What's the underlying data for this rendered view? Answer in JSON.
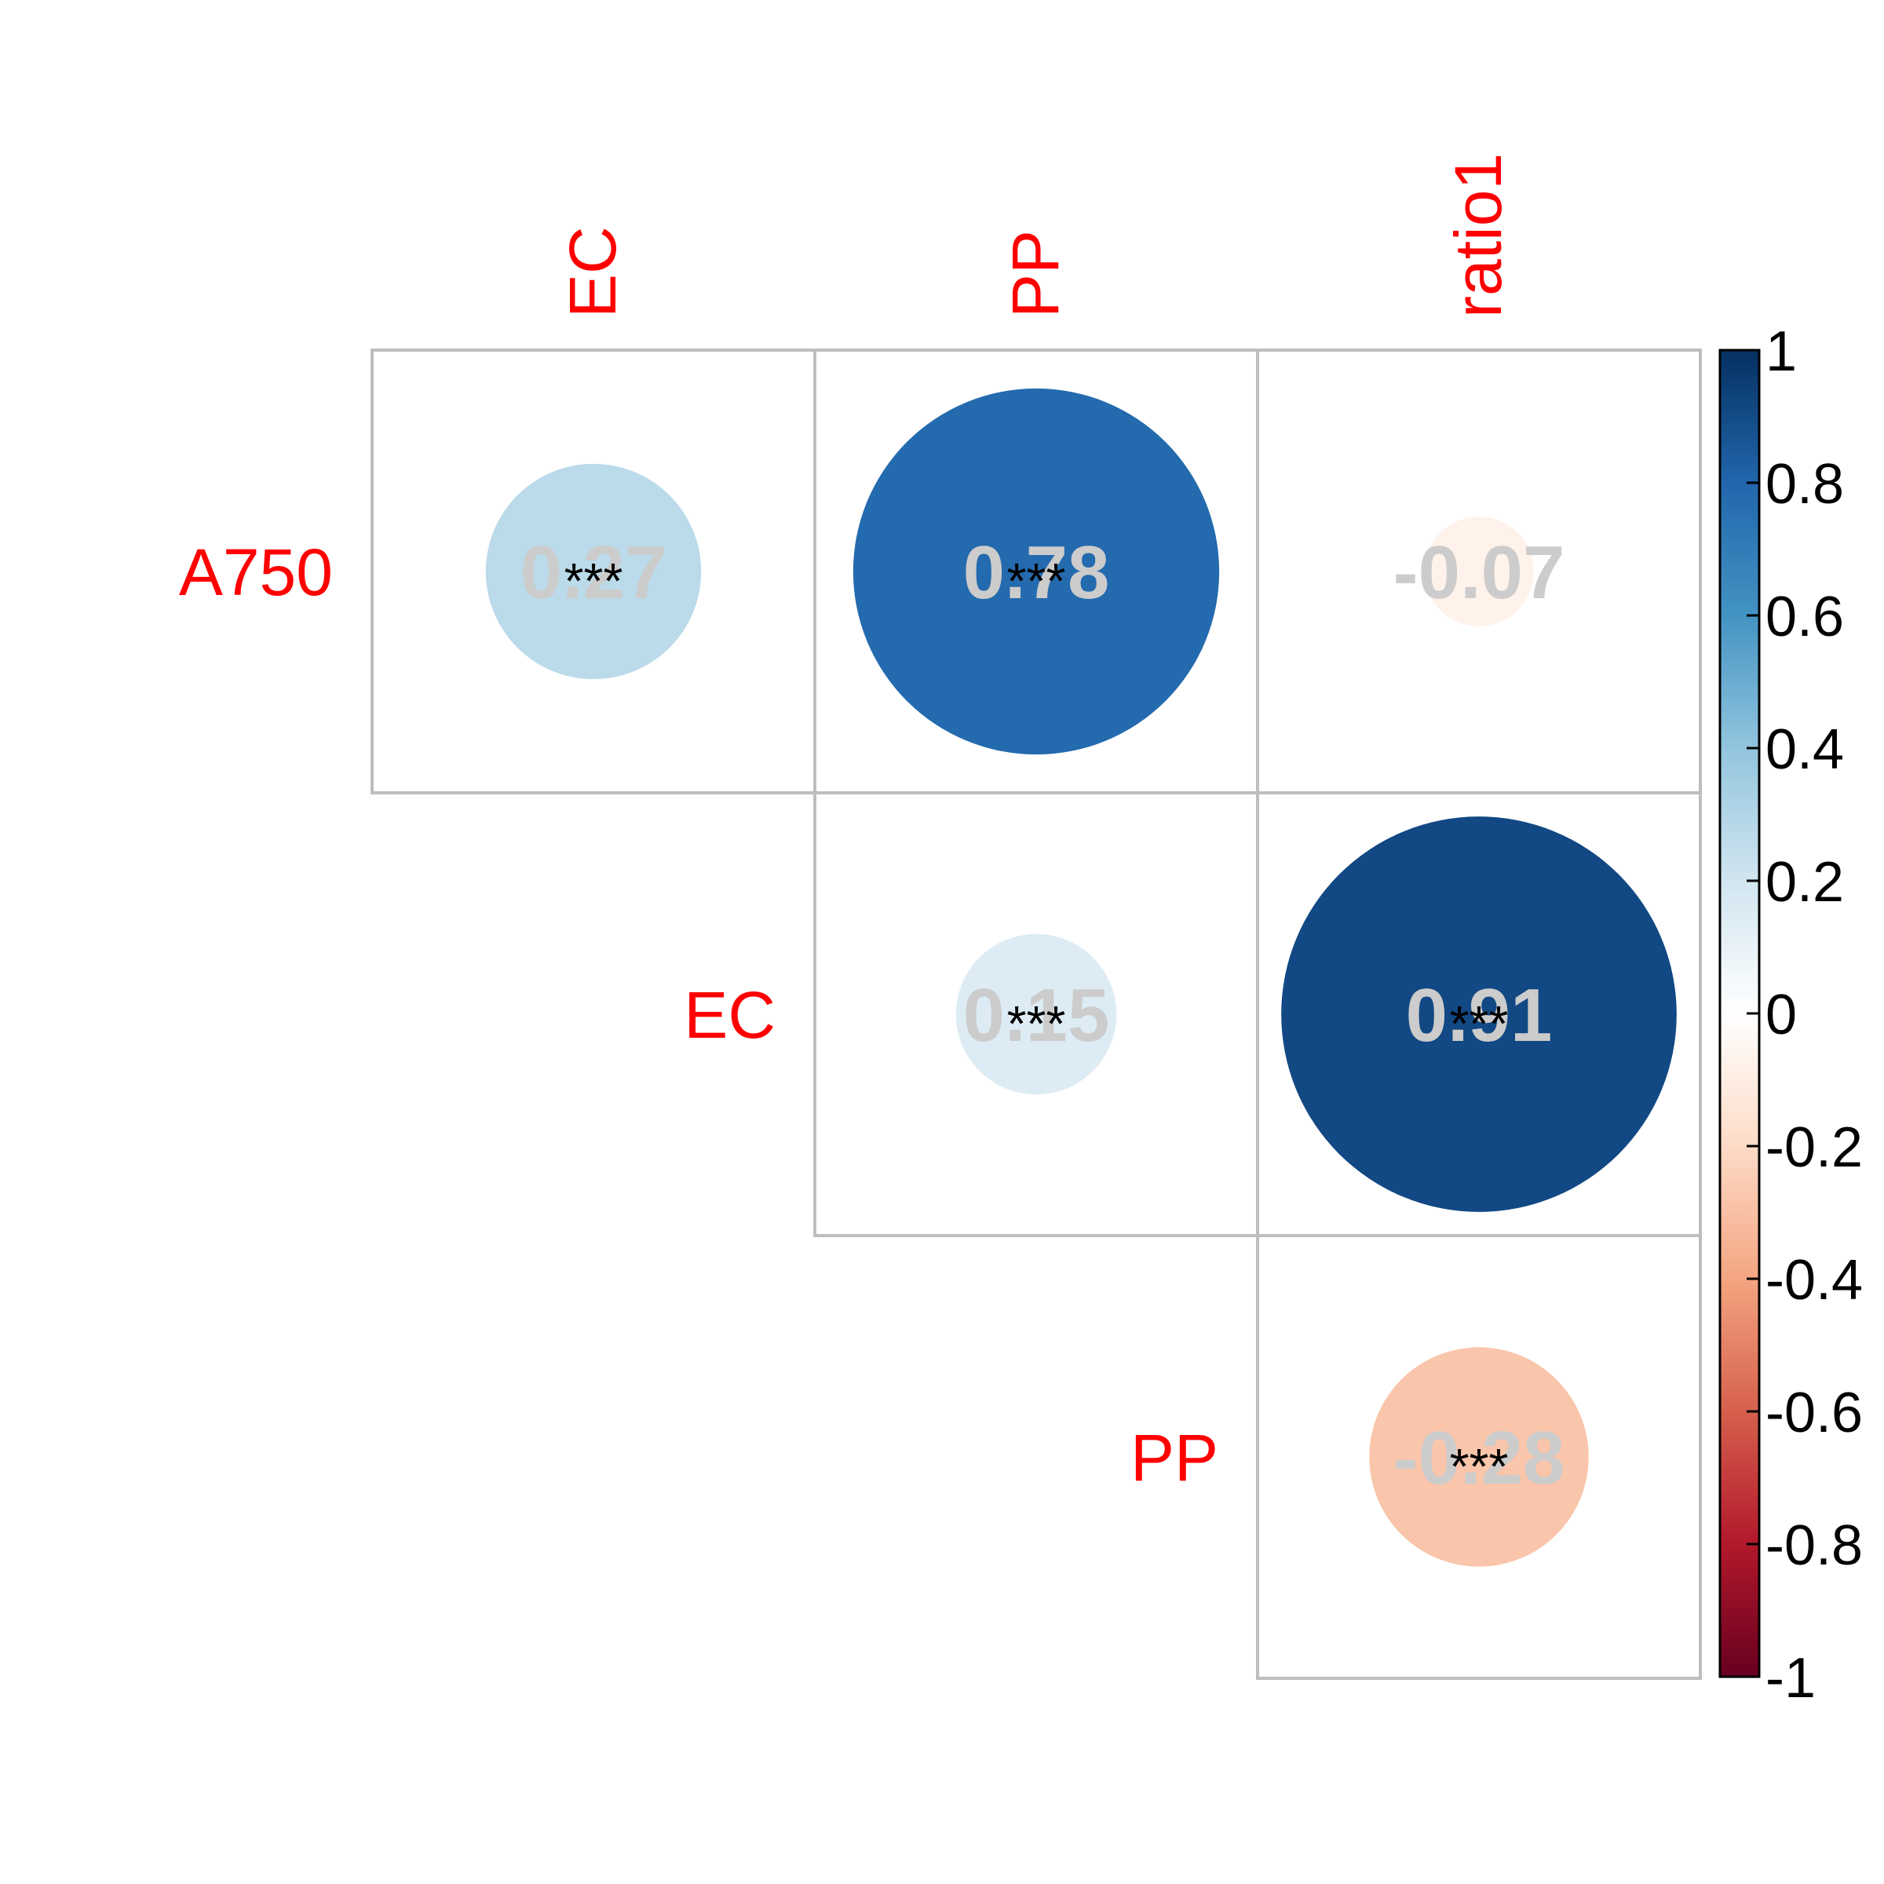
{
  "chart_data": {
    "type": "heatmap",
    "subtype": "correlation-matrix-upper",
    "row_labels": [
      "A750",
      "EC",
      "PP"
    ],
    "col_labels": [
      "EC",
      "PP",
      "ratio1"
    ],
    "cells": [
      {
        "row": 0,
        "col": 0,
        "value": 0.27,
        "label": "0.27",
        "sig": "***"
      },
      {
        "row": 0,
        "col": 1,
        "value": 0.78,
        "label": "0.78",
        "sig": "***"
      },
      {
        "row": 0,
        "col": 2,
        "value": -0.07,
        "label": "-0.07",
        "sig": ""
      },
      {
        "row": 1,
        "col": 1,
        "value": 0.15,
        "label": "0.15",
        "sig": "***"
      },
      {
        "row": 1,
        "col": 2,
        "value": 0.91,
        "label": "0.91",
        "sig": "***"
      },
      {
        "row": 2,
        "col": 2,
        "value": -0.28,
        "label": "-0.28",
        "sig": "***"
      }
    ],
    "colorbar": {
      "range": [
        -1,
        1
      ],
      "ticks": [
        1,
        0.8,
        0.6,
        0.4,
        0.2,
        0,
        -0.2,
        -0.4,
        -0.6,
        -0.8,
        -1
      ],
      "tick_labels": [
        "1",
        "0.8",
        "0.6",
        "0.4",
        "0.2",
        "0",
        "-0.2",
        "-0.4",
        "-0.6",
        "-0.8",
        "-1"
      ],
      "colors": [
        "#67001F",
        "#B2182B",
        "#D6604D",
        "#F4A582",
        "#FDDBC7",
        "#FFFFFF",
        "#D1E5F0",
        "#92C5DE",
        "#4393C3",
        "#2166AC",
        "#053061"
      ]
    },
    "label_color": "#FF0000",
    "value_text_color": "#CCCCCC",
    "grid_color": "#BEBEBE"
  }
}
